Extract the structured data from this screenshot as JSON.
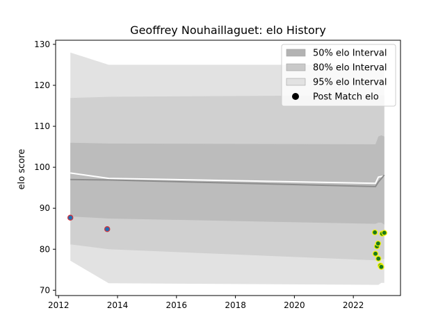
{
  "chart_data": {
    "type": "area",
    "title": "Geoffrey Nouhaillaguet: elo History",
    "xlabel": "",
    "ylabel": "elo score",
    "xlim": [
      2011.9,
      2023.6
    ],
    "ylim": [
      68.7,
      131.0
    ],
    "x_ticks": [
      "2012",
      "2014",
      "2016",
      "2018",
      "2020",
      "2022"
    ],
    "x_tick_values": [
      2012,
      2014,
      2016,
      2018,
      2020,
      2022
    ],
    "y_ticks": [
      "70",
      "80",
      "90",
      "100",
      "110",
      "120",
      "130"
    ],
    "y_tick_values": [
      70,
      80,
      90,
      100,
      110,
      120,
      130
    ],
    "grid": false,
    "legend_position": "top-right",
    "legend": [
      {
        "label": "50% elo Interval",
        "kind": "patch",
        "color": "#b3b3b3"
      },
      {
        "label": "80% elo Interval",
        "kind": "patch",
        "color": "#c9c9c9"
      },
      {
        "label": "95% elo Interval",
        "kind": "patch",
        "color": "#e2e2e2"
      },
      {
        "label": "Post Match elo",
        "kind": "dot",
        "color": "#000000"
      }
    ],
    "intervals": [
      {
        "name": "95% elo Interval",
        "color": "#e2e2e2",
        "x": [
          2012.4,
          2013.7,
          2022.75,
          2022.85,
          2022.95,
          2023.05
        ],
        "upper": [
          128.0,
          125.0,
          125.0,
          125.0,
          125.0,
          125.0
        ],
        "lower": [
          77.2,
          71.7,
          71.3,
          71.3,
          71.8,
          71.8
        ]
      },
      {
        "name": "80% elo Interval",
        "color": "#d0d0d0",
        "x": [
          2012.4,
          2013.7,
          2022.75,
          2022.85,
          2022.95,
          2023.05
        ],
        "upper": [
          116.9,
          117.2,
          117.6,
          117.6,
          117.6,
          117.6
        ],
        "lower": [
          81.2,
          80.0,
          77.3,
          77.3,
          77.6,
          77.6
        ]
      },
      {
        "name": "50% elo Interval",
        "color": "#bcbcbc",
        "x": [
          2012.4,
          2013.7,
          2022.75,
          2022.85,
          2022.95,
          2023.05
        ],
        "upper": [
          106.0,
          105.8,
          105.6,
          107.5,
          107.8,
          107.5
        ],
        "lower": [
          88.0,
          87.5,
          86.2,
          86.5,
          86.5,
          86.0
        ]
      }
    ],
    "series": [
      {
        "name": "",
        "style": "line",
        "color": "#ffffff",
        "x": [
          2012.4,
          2013.7,
          2022.75,
          2022.85,
          2023.05
        ],
        "values": [
          98.6,
          97.3,
          96.1,
          97.6,
          97.9
        ]
      },
      {
        "name": "",
        "style": "line",
        "color": "#8c8c8c",
        "x": [
          2012.4,
          2013.7,
          2022.75,
          2022.85,
          2023.05
        ],
        "values": [
          97.0,
          96.9,
          95.3,
          96.4,
          98.1
        ]
      },
      {
        "name": "Post Match elo",
        "style": "points",
        "points": [
          {
            "x": 2012.4,
            "y": 87.7,
            "fill": "#1f6fb4",
            "edge": "#d0343f"
          },
          {
            "x": 2013.65,
            "y": 84.9,
            "fill": "#1f6fb4",
            "edge": "#d0343f"
          },
          {
            "x": 2022.73,
            "y": 84.1,
            "fill": "#1a7a1a",
            "edge": "#f2f20a"
          },
          {
            "x": 2022.75,
            "y": 78.9,
            "fill": "#1a7a1a",
            "edge": "#f2f20a"
          },
          {
            "x": 2022.8,
            "y": 80.7,
            "fill": "#1a7a1a",
            "edge": "#f2f20a"
          },
          {
            "x": 2022.84,
            "y": 81.4,
            "fill": "#1a7a1a",
            "edge": "#f2f20a"
          },
          {
            "x": 2022.85,
            "y": 77.7,
            "fill": "#1a7a1a",
            "edge": "#f2f20a"
          },
          {
            "x": 2022.92,
            "y": 76.0,
            "fill": "#1a7a1a",
            "edge": "#f2f20a"
          },
          {
            "x": 2022.95,
            "y": 75.7,
            "fill": "#1a7a1a",
            "edge": "#f2f20a"
          },
          {
            "x": 2022.98,
            "y": 83.8,
            "fill": "#1a7a1a",
            "edge": "#f2f20a"
          },
          {
            "x": 2023.05,
            "y": 84.0,
            "fill": "#1a7a1a",
            "edge": "#f2f20a"
          }
        ]
      }
    ]
  }
}
